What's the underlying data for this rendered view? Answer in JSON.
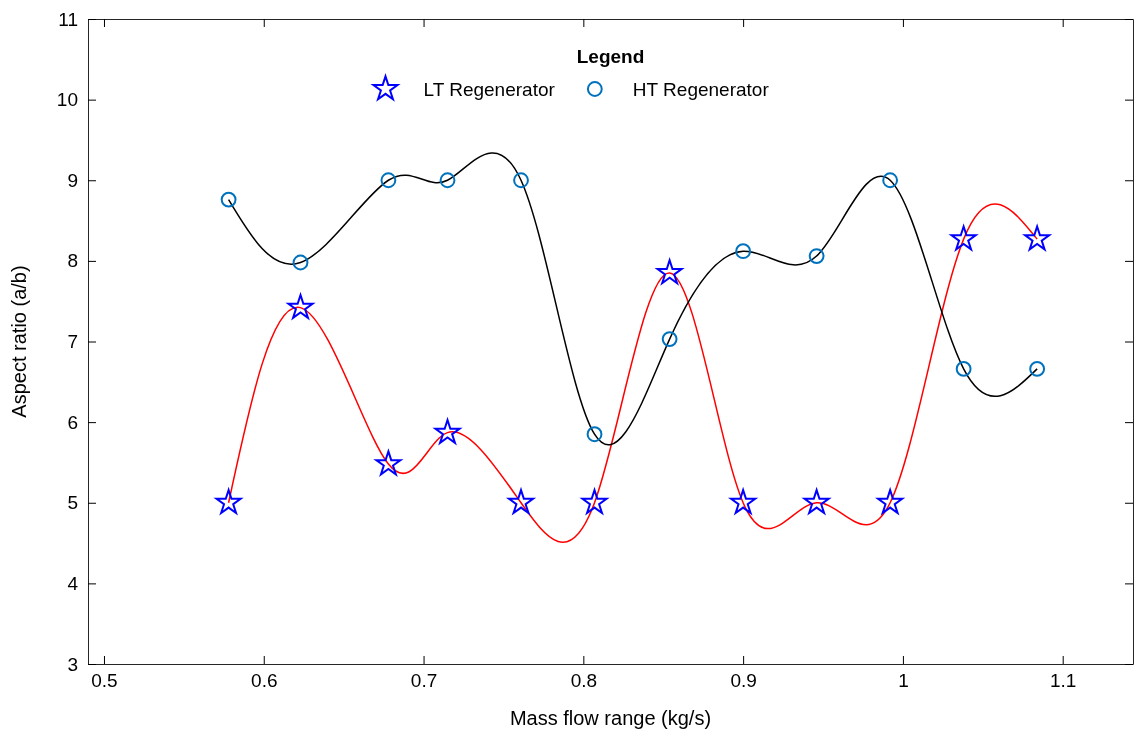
{
  "chart_data": {
    "type": "line",
    "xlabel": "Mass flow range (kg/s)",
    "ylabel": "Aspect ratio (a/b)",
    "legend_title": "Legend",
    "legend": "top",
    "grid": false,
    "x": [
      0.578,
      0.623,
      0.678,
      0.715,
      0.761,
      0.807,
      0.854,
      0.9,
      0.946,
      0.992,
      1.038,
      1.084
    ],
    "xlim": [
      0.49,
      1.144
    ],
    "xticks": [
      0.5,
      0.6,
      0.7,
      0.8,
      0.9,
      1,
      1.1
    ],
    "ylim": [
      3,
      11
    ],
    "yticks": [
      3,
      4,
      5,
      6,
      7,
      8,
      9,
      10,
      11
    ],
    "series": [
      {
        "color": "#ff0000",
        "marker": "none",
        "values": [
          5,
          7.42,
          5.48,
          5.87,
          5,
          5,
          7.85,
          5,
          5,
          5,
          8.27,
          8.27
        ]
      },
      {
        "color": "#000000",
        "marker": "none",
        "values": [
          8.76,
          7.98,
          9,
          9,
          9,
          5.85,
          7.03,
          8.12,
          8.06,
          9,
          6.66,
          6.66
        ]
      },
      {
        "type": "scatter",
        "name": "LT Regenerator",
        "color": "#0000ff",
        "marker": "star",
        "values": [
          5,
          7.42,
          5.48,
          5.87,
          5,
          5,
          7.85,
          5,
          5,
          5,
          8.27,
          8.27
        ]
      },
      {
        "type": "scatter",
        "name": "HT Regenerator",
        "color": "#0072bd",
        "marker": "circle",
        "values": [
          8.76,
          7.98,
          9,
          9,
          9,
          5.85,
          7.03,
          8.12,
          8.06,
          9,
          6.66,
          6.66
        ]
      }
    ]
  }
}
